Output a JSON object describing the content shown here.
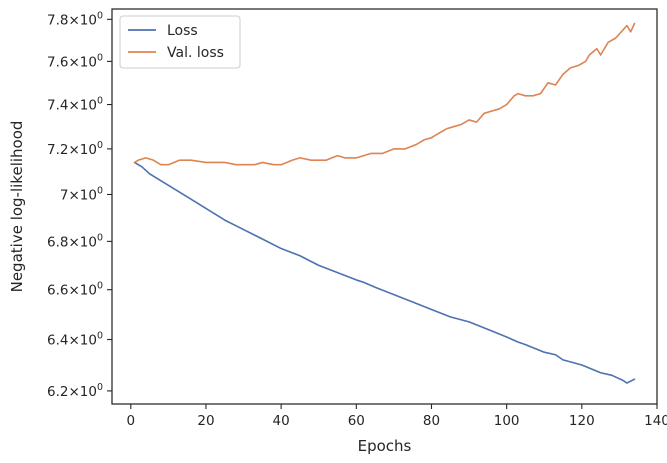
{
  "chart_data": {
    "type": "line",
    "xlabel": "Epochs",
    "ylabel": "Negative log-likelihood",
    "xlim": [
      -5,
      140
    ],
    "ylim": [
      6.15,
      7.85
    ],
    "yscale": "log",
    "grid": false,
    "legend": "top-left",
    "x_ticks": [
      0,
      20,
      40,
      60,
      80,
      100,
      120,
      140
    ],
    "x_tick_labels": [
      "0",
      "20",
      "40",
      "60",
      "80",
      "100",
      "120",
      "140"
    ],
    "y_ticks": [
      6.2,
      6.4,
      6.6,
      6.8,
      7.0,
      7.2,
      7.4,
      7.6,
      7.8
    ],
    "y_tick_labels": [
      {
        "mantissa": "6.2",
        "base": "10",
        "exponent": "0"
      },
      {
        "mantissa": "6.4",
        "base": "10",
        "exponent": "0"
      },
      {
        "mantissa": "6.6",
        "base": "10",
        "exponent": "0"
      },
      {
        "mantissa": "6.8",
        "base": "10",
        "exponent": "0"
      },
      {
        "mantissa": "7",
        "base": "10",
        "exponent": "0"
      },
      {
        "mantissa": "7.2",
        "base": "10",
        "exponent": "0"
      },
      {
        "mantissa": "7.4",
        "base": "10",
        "exponent": "0"
      },
      {
        "mantissa": "7.6",
        "base": "10",
        "exponent": "0"
      },
      {
        "mantissa": "7.8",
        "base": "10",
        "exponent": "0"
      }
    ],
    "series": [
      {
        "name": "Loss",
        "color": "#4c72b0",
        "points": [
          [
            1,
            7.14
          ],
          [
            3,
            7.12
          ],
          [
            5,
            7.09
          ],
          [
            8,
            7.06
          ],
          [
            10,
            7.04
          ],
          [
            15,
            6.99
          ],
          [
            20,
            6.94
          ],
          [
            25,
            6.89
          ],
          [
            30,
            6.85
          ],
          [
            35,
            6.81
          ],
          [
            40,
            6.77
          ],
          [
            45,
            6.74
          ],
          [
            50,
            6.7
          ],
          [
            55,
            6.67
          ],
          [
            60,
            6.64
          ],
          [
            62,
            6.63
          ],
          [
            65,
            6.61
          ],
          [
            70,
            6.58
          ],
          [
            75,
            6.55
          ],
          [
            80,
            6.52
          ],
          [
            85,
            6.49
          ],
          [
            90,
            6.47
          ],
          [
            95,
            6.44
          ],
          [
            100,
            6.41
          ],
          [
            103,
            6.39
          ],
          [
            105,
            6.38
          ],
          [
            110,
            6.35
          ],
          [
            113,
            6.34
          ],
          [
            115,
            6.32
          ],
          [
            120,
            6.3
          ],
          [
            125,
            6.27
          ],
          [
            128,
            6.26
          ],
          [
            131,
            6.24
          ],
          [
            132,
            6.23
          ],
          [
            134,
            6.245
          ]
        ]
      },
      {
        "name": "Val. loss",
        "color": "#dd8452",
        "points": [
          [
            1,
            7.14
          ],
          [
            2,
            7.15
          ],
          [
            4,
            7.16
          ],
          [
            6,
            7.15
          ],
          [
            8,
            7.13
          ],
          [
            10,
            7.13
          ],
          [
            13,
            7.15
          ],
          [
            16,
            7.15
          ],
          [
            20,
            7.14
          ],
          [
            25,
            7.14
          ],
          [
            28,
            7.13
          ],
          [
            30,
            7.13
          ],
          [
            33,
            7.13
          ],
          [
            35,
            7.14
          ],
          [
            38,
            7.13
          ],
          [
            40,
            7.13
          ],
          [
            43,
            7.15
          ],
          [
            45,
            7.16
          ],
          [
            48,
            7.15
          ],
          [
            50,
            7.15
          ],
          [
            52,
            7.15
          ],
          [
            55,
            7.17
          ],
          [
            57,
            7.16
          ],
          [
            60,
            7.16
          ],
          [
            62,
            7.17
          ],
          [
            64,
            7.18
          ],
          [
            67,
            7.18
          ],
          [
            70,
            7.2
          ],
          [
            73,
            7.2
          ],
          [
            76,
            7.22
          ],
          [
            78,
            7.24
          ],
          [
            80,
            7.25
          ],
          [
            82,
            7.27
          ],
          [
            84,
            7.29
          ],
          [
            86,
            7.3
          ],
          [
            88,
            7.31
          ],
          [
            90,
            7.33
          ],
          [
            92,
            7.32
          ],
          [
            94,
            7.36
          ],
          [
            96,
            7.37
          ],
          [
            98,
            7.38
          ],
          [
            100,
            7.4
          ],
          [
            102,
            7.44
          ],
          [
            103,
            7.45
          ],
          [
            105,
            7.44
          ],
          [
            107,
            7.44
          ],
          [
            109,
            7.45
          ],
          [
            111,
            7.5
          ],
          [
            113,
            7.49
          ],
          [
            115,
            7.54
          ],
          [
            117,
            7.57
          ],
          [
            119,
            7.58
          ],
          [
            121,
            7.6
          ],
          [
            122,
            7.63
          ],
          [
            124,
            7.66
          ],
          [
            125,
            7.63
          ],
          [
            127,
            7.69
          ],
          [
            129,
            7.71
          ],
          [
            131,
            7.75
          ],
          [
            132,
            7.77
          ],
          [
            133,
            7.74
          ],
          [
            134,
            7.78
          ]
        ]
      }
    ]
  }
}
